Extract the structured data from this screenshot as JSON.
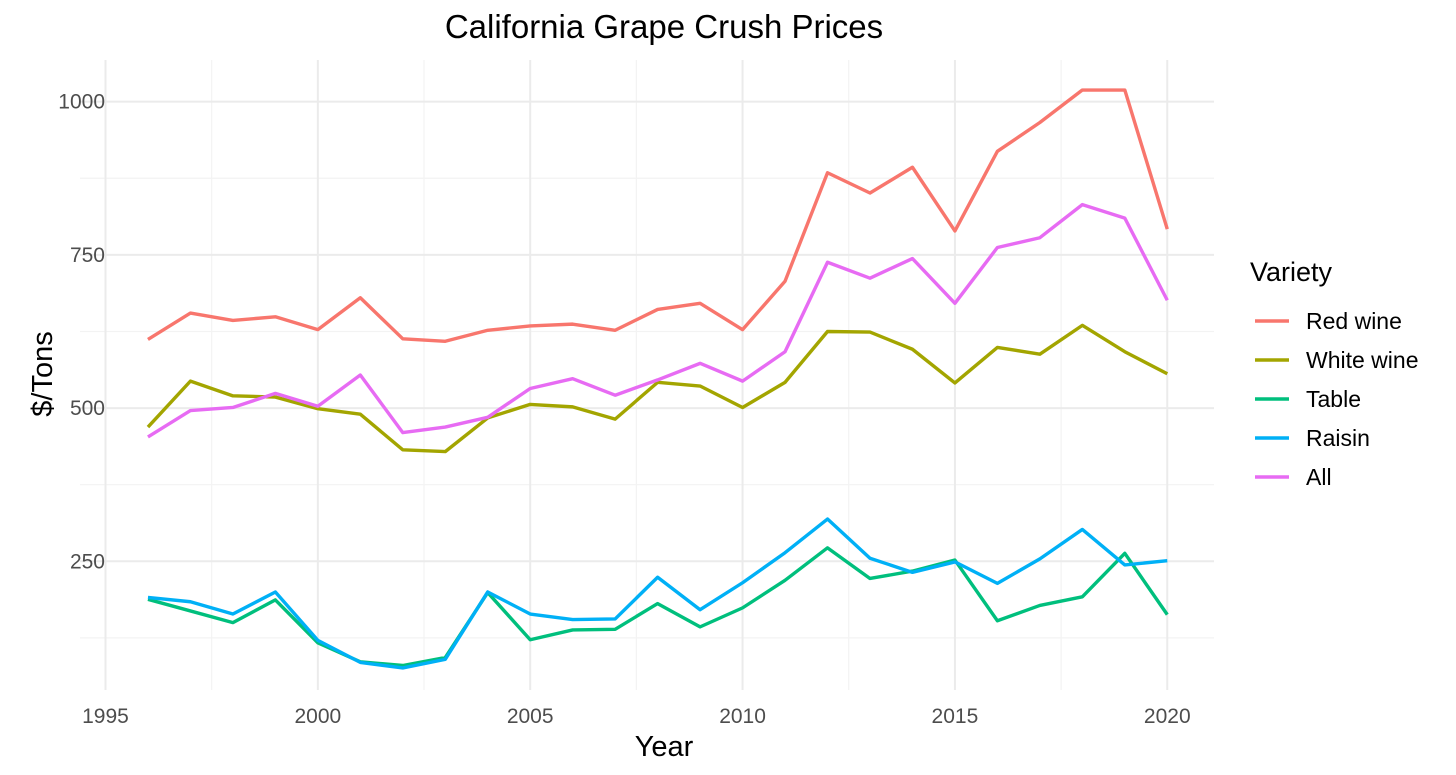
{
  "chart_data": {
    "type": "line",
    "title": "California Grape Crush Prices",
    "xlabel": "Year",
    "ylabel": "$/Tons",
    "xlim": [
      1994.4,
      2021.1
    ],
    "ylim": [
      40,
      1068
    ],
    "x_ticks": [
      1995,
      2000,
      2005,
      2010,
      2015,
      2020
    ],
    "x_tick_labels": [
      "1995",
      "2000",
      "2005",
      "2010",
      "2015",
      "2020"
    ],
    "y_ticks": [
      250,
      500,
      750,
      1000
    ],
    "y_tick_labels": [
      "250",
      "500",
      "750",
      "1000"
    ],
    "grid": true,
    "legend": {
      "title": "Variety",
      "position": "right"
    },
    "x": [
      1996,
      1997,
      1998,
      1999,
      2000,
      2001,
      2002,
      2003,
      2004,
      2005,
      2006,
      2007,
      2008,
      2009,
      2010,
      2011,
      2012,
      2013,
      2014,
      2015,
      2016,
      2017,
      2018,
      2019,
      2020
    ],
    "series": [
      {
        "name": "Red wine",
        "color": "#F8766D",
        "values": [
          612,
          655,
          643,
          649,
          628,
          680,
          613,
          609,
          627,
          634,
          637,
          627,
          661,
          671,
          628,
          707,
          884,
          851,
          893,
          789,
          919,
          966,
          1019,
          1019,
          792
        ]
      },
      {
        "name": "White wine",
        "color": "#A3A500",
        "values": [
          469,
          544,
          520,
          518,
          499,
          490,
          432,
          429,
          484,
          506,
          502,
          482,
          542,
          536,
          501,
          542,
          625,
          624,
          596,
          541,
          599,
          588,
          635,
          592,
          556
        ]
      },
      {
        "name": "Table",
        "color": "#00BF7D",
        "values": [
          188,
          169,
          150,
          187,
          117,
          86,
          80,
          93,
          199,
          122,
          138,
          139,
          181,
          143,
          174,
          219,
          272,
          222,
          234,
          252,
          153,
          178,
          192,
          263,
          163
        ]
      },
      {
        "name": "Raisin",
        "color": "#00B0F6",
        "values": [
          191,
          184,
          164,
          200,
          121,
          85,
          76,
          90,
          200,
          164,
          155,
          156,
          224,
          171,
          215,
          264,
          319,
          255,
          232,
          249,
          214,
          254,
          302,
          244,
          251
        ]
      },
      {
        "name": "All",
        "color": "#E76BF3",
        "values": [
          453,
          496,
          501,
          524,
          503,
          554,
          460,
          469,
          485,
          532,
          548,
          521,
          546,
          573,
          544,
          592,
          738,
          712,
          744,
          671,
          762,
          778,
          832,
          810,
          676
        ]
      }
    ]
  }
}
